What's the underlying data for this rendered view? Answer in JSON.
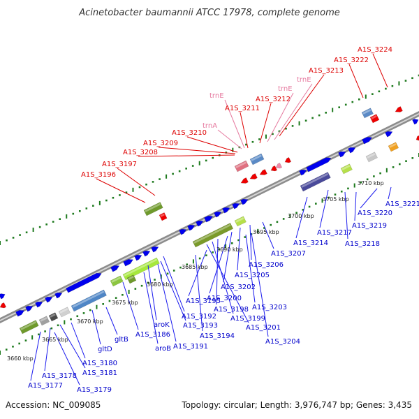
{
  "title": "Acinetobacter baumannii ATCC 17978, complete genome",
  "footer": {
    "accession": "Accession: NC_009085",
    "topology": "Topology: circular; Length: 3,976,747 bp; Genes: 3,435"
  },
  "scale_labels": [
    "3660 kbp",
    "3665 kbp",
    "3670 kbp",
    "3675 kbp",
    "3680 kbp",
    "3685 kbp",
    "3690 kbp",
    "3695 kbp",
    "3700 kbp",
    "3705 kbp",
    "3710 kbp"
  ],
  "top_labels": [
    {
      "text": "A1S_3224",
      "color": "red"
    },
    {
      "text": "A1S_3222",
      "color": "red"
    },
    {
      "text": "A1S_3213",
      "color": "red"
    },
    {
      "text": "trnE",
      "color": "pink"
    },
    {
      "text": "trnE",
      "color": "pink"
    },
    {
      "text": "A1S_3212",
      "color": "red"
    },
    {
      "text": "trnE",
      "color": "pink"
    },
    {
      "text": "A1S_3211",
      "color": "red"
    },
    {
      "text": "trnA",
      "color": "pink"
    },
    {
      "text": "A1S_3210",
      "color": "red"
    },
    {
      "text": "A1S_3209",
      "color": "red"
    },
    {
      "text": "A1S_3208",
      "color": "red"
    },
    {
      "text": "A1S_3197",
      "color": "red"
    },
    {
      "text": "A1S_3196",
      "color": "red"
    }
  ],
  "bottom_labels": [
    "A1S_3221",
    "A1S_3220",
    "A1S_3219",
    "A1S_3218",
    "A1S_3217",
    "A1S_3214",
    "A1S_3207",
    "A1S_3206",
    "A1S_3205",
    "A1S_3202",
    "A1S_3203",
    "A1S_3200",
    "A1S_3198",
    "A1S_3199",
    "A1S_3201",
    "A1S_3204",
    "A1S_3195",
    "A1S_3192",
    "A1S_3193",
    "A1S_3194",
    "A1S_3191",
    "aroK",
    "A1S_3186",
    "aroB",
    "gltB",
    "gltD",
    "A1S_3180",
    "A1S_3181",
    "A1S_3178",
    "A1S_3177",
    "A1S_3179"
  ],
  "colors": {
    "forward_gene": "#0000ee",
    "reverse_gene": "#ee0000",
    "trna": "#f08aa8",
    "forward_label": "#0000cc",
    "reverse_label": "#dd0000",
    "trna_label": "#e67ba0",
    "leader_line": "#1a1aee",
    "backbone": "#9a9a9a",
    "tick_dots": "#1e7a1e"
  }
}
